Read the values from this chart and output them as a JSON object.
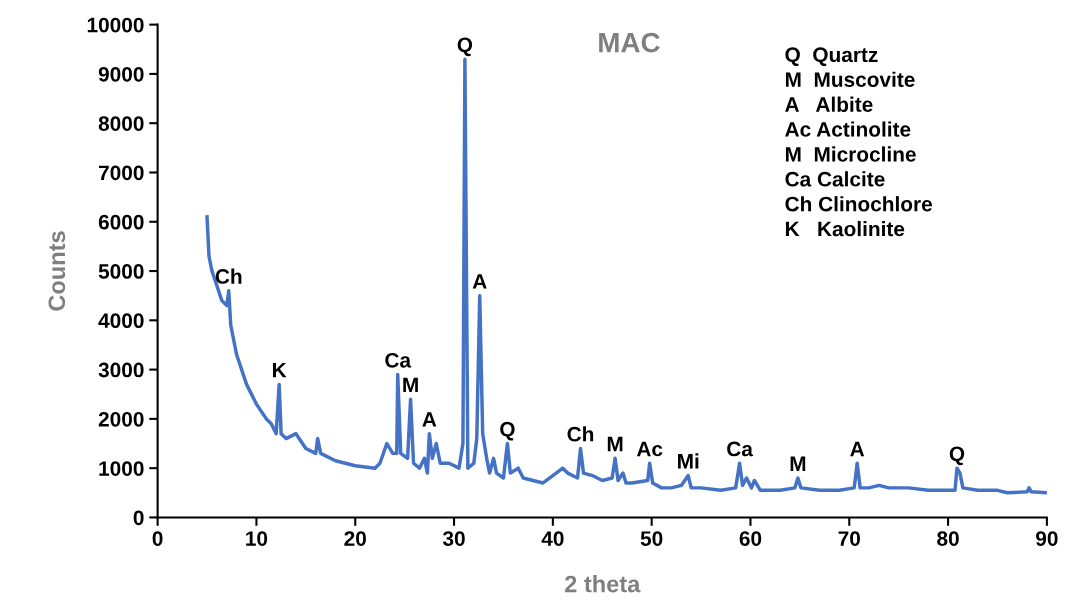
{
  "chart_data": {
    "type": "line",
    "title": "MAC",
    "xlabel": "2 theta",
    "ylabel": "Counts",
    "xlim": [
      0,
      90
    ],
    "xticks": [
      0,
      10,
      20,
      30,
      40,
      50,
      60,
      70,
      80,
      90
    ],
    "ylim": [
      0,
      10000
    ],
    "yticks": [
      0,
      1000,
      2000,
      3000,
      4000,
      5000,
      6000,
      7000,
      8000,
      9000,
      10000
    ],
    "grid": false,
    "legend": false,
    "marker": "none",
    "line_style": "solid",
    "series": [
      {
        "color": "#4472c4",
        "x": [
          5.0,
          5.2,
          5.5,
          6.0,
          6.5,
          7.0,
          7.2,
          7.4,
          8,
          9,
          10,
          11,
          11.5,
          12,
          12.3,
          12.5,
          13,
          14,
          15,
          16,
          16.2,
          16.5,
          18,
          20,
          22,
          22.5,
          23.2,
          23.8,
          24.2,
          24.3,
          24.6,
          25.3,
          25.6,
          25.9,
          26.5,
          27,
          27.3,
          27.5,
          27.8,
          28.2,
          28.6,
          29.5,
          30.5,
          30.9,
          31.1,
          31.4,
          32,
          32.3,
          32.6,
          32.9,
          33.3,
          33.6,
          34,
          34.3,
          35,
          35.4,
          35.7,
          36.5,
          37,
          38,
          39,
          40,
          41,
          41.5,
          42.5,
          42.8,
          43.1,
          44,
          45,
          46,
          46.3,
          46.6,
          47.1,
          47.4,
          48,
          49.6,
          49.8,
          50.1,
          51,
          52,
          53,
          53.7,
          54,
          55,
          57,
          58.5,
          58.9,
          59.2,
          59.6,
          60.1,
          60.4,
          61,
          63,
          64.5,
          64.8,
          65.1,
          67,
          69,
          70.5,
          70.8,
          71.1,
          72,
          73,
          74,
          76,
          78,
          80,
          80.7,
          80.9,
          81.2,
          81.5,
          83,
          85,
          86,
          88,
          88.2,
          88.4,
          90
        ],
        "values": [
          6100,
          5300,
          5000,
          4700,
          4400,
          4300,
          4600,
          3900,
          3300,
          2700,
          2300,
          2000,
          1900,
          1700,
          2700,
          1700,
          1600,
          1700,
          1400,
          1300,
          1600,
          1300,
          1150,
          1050,
          1000,
          1100,
          1500,
          1300,
          1300,
          2900,
          1300,
          1200,
          2400,
          1100,
          1000,
          1200,
          900,
          1700,
          1200,
          1500,
          1100,
          1100,
          1000,
          1500,
          9300,
          1000,
          1100,
          1600,
          4500,
          1700,
          1200,
          900,
          1200,
          900,
          800,
          1500,
          900,
          1000,
          800,
          750,
          700,
          850,
          1000,
          900,
          800,
          1400,
          900,
          850,
          750,
          800,
          1200,
          750,
          900,
          700,
          700,
          750,
          1100,
          700,
          600,
          600,
          650,
          850,
          600,
          600,
          550,
          600,
          1100,
          650,
          800,
          600,
          750,
          550,
          550,
          600,
          800,
          600,
          550,
          550,
          600,
          1100,
          600,
          600,
          650,
          600,
          600,
          550,
          550,
          550,
          1000,
          900,
          600,
          550,
          550,
          500,
          520,
          600,
          520,
          500
        ]
      }
    ],
    "annotations": [
      {
        "text": "Ch",
        "x": 7.2,
        "y": 4600
      },
      {
        "text": "K",
        "x": 12.3,
        "y": 2700
      },
      {
        "text": "Ca",
        "x": 24.3,
        "y": 2900
      },
      {
        "text": "M",
        "x": 25.6,
        "y": 2400
      },
      {
        "text": "A",
        "x": 27.5,
        "y": 1700
      },
      {
        "text": "Q",
        "x": 31.1,
        "y": 9300
      },
      {
        "text": "A",
        "x": 32.6,
        "y": 4500
      },
      {
        "text": "Q",
        "x": 35.4,
        "y": 1500
      },
      {
        "text": "Ch",
        "x": 42.8,
        "y": 1400
      },
      {
        "text": "M",
        "x": 46.3,
        "y": 1200
      },
      {
        "text": "Ac",
        "x": 49.8,
        "y": 1100
      },
      {
        "text": "Mi",
        "x": 53.7,
        "y": 850
      },
      {
        "text": "Ca",
        "x": 58.9,
        "y": 1100
      },
      {
        "text": "M",
        "x": 64.8,
        "y": 800
      },
      {
        "text": "A",
        "x": 70.8,
        "y": 1100
      },
      {
        "text": "Q",
        "x": 80.9,
        "y": 1000
      },
      "Q  Quartz",
      "M  Muscovite",
      "A   Albite",
      "Ac Actinolite",
      "M  Microcline",
      "Ca Calcite",
      "Ch Clinochlore",
      "K   Kaolinite"
    ]
  }
}
